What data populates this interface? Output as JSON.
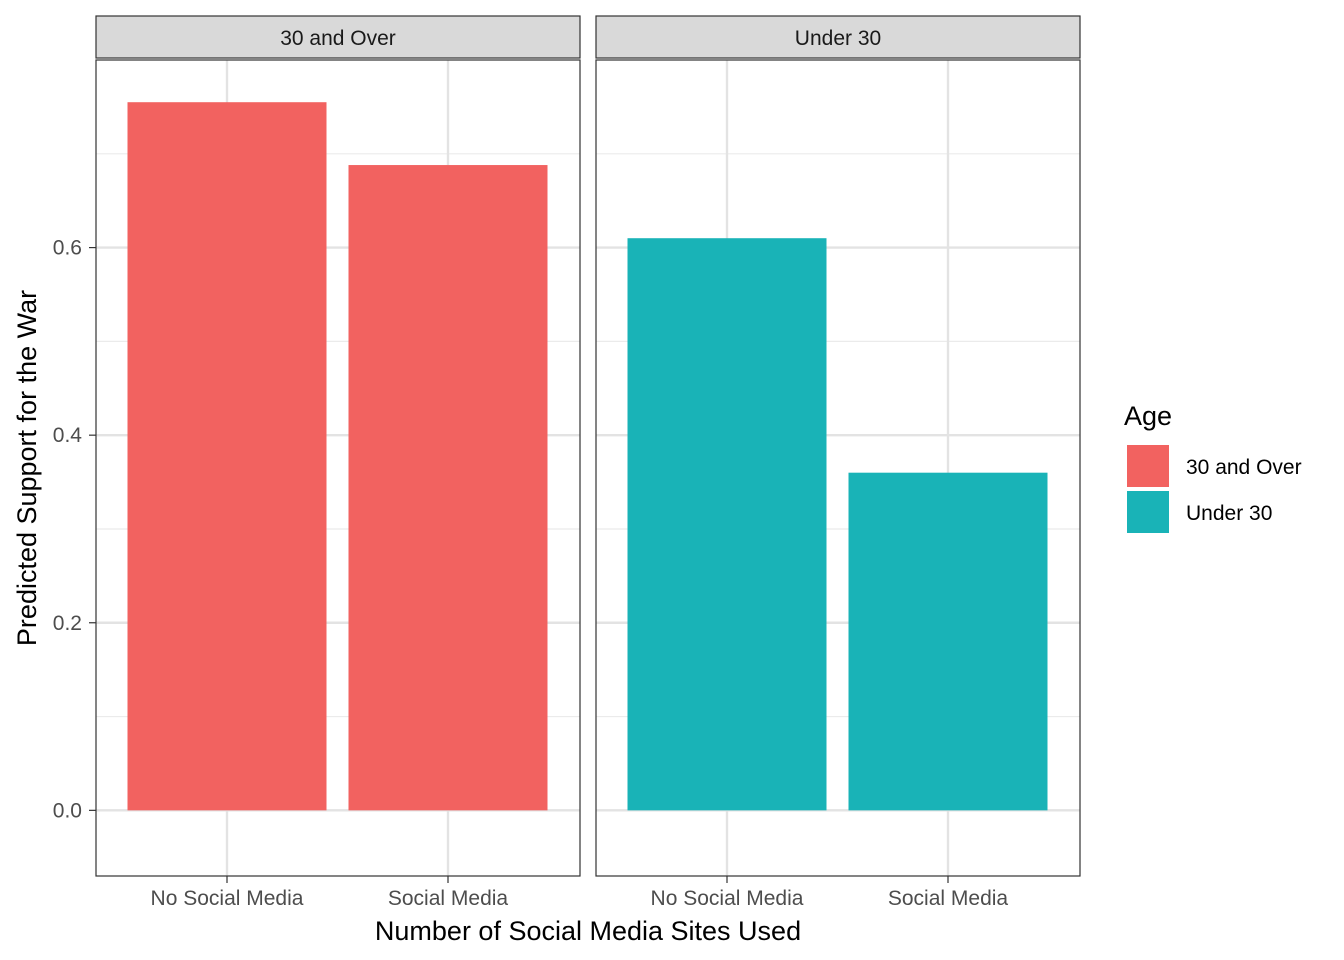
{
  "chart_data": {
    "type": "bar",
    "facet_by": "Age",
    "categories": [
      "No Social Media",
      "Social Media"
    ],
    "xlabel": "Number of Social Media Sites Used",
    "ylabel": "Predicted Support for the War",
    "ylim": [
      -0.07,
      0.8
    ],
    "yticks": [
      0.0,
      0.2,
      0.4,
      0.6
    ],
    "ytick_labels": [
      "0.0",
      "0.2",
      "0.4",
      "0.6"
    ],
    "grid": true,
    "panels": [
      {
        "label": "30 and Over",
        "color": "#F26260",
        "values": [
          0.755,
          0.688
        ]
      },
      {
        "label": "Under 30",
        "color": "#19B3B7",
        "values": [
          0.61,
          0.36
        ]
      }
    ],
    "legend": {
      "title": "Age",
      "position": "right",
      "entries": [
        {
          "label": "30 and Over",
          "color": "#F26260"
        },
        {
          "label": "Under 30",
          "color": "#19B3B7"
        }
      ]
    }
  }
}
